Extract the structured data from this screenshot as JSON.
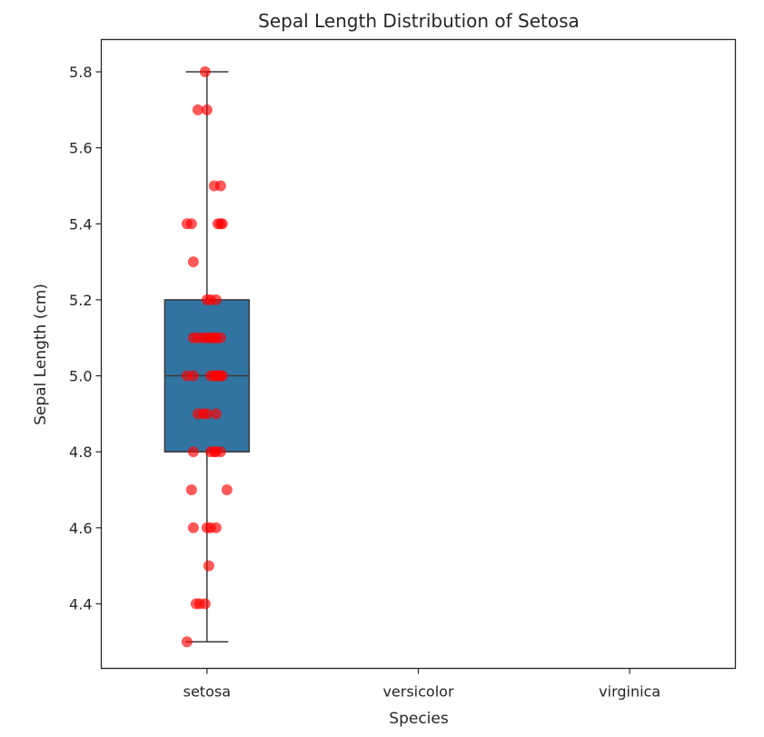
{
  "chart_data": {
    "type": "boxplot",
    "title": "Sepal Length Distribution of Setosa",
    "xlabel": "Species",
    "ylabel": "Sepal Length (cm)",
    "categories": [
      "setosa",
      "versicolor",
      "virginica"
    ],
    "ylim": [
      4.23,
      5.885
    ],
    "yticks": [
      4.4,
      4.6,
      4.8,
      5.0,
      5.2,
      5.4,
      5.6,
      5.8
    ],
    "ytick_labels": [
      "4.4",
      "4.6",
      "4.8",
      "5.0",
      "5.2",
      "5.4",
      "5.6",
      "5.8"
    ],
    "grid": false,
    "box": {
      "category": "setosa",
      "min": 4.3,
      "q1": 4.8,
      "median": 5.0,
      "q3": 5.2,
      "max": 5.8,
      "color": "#3274a1"
    },
    "points": {
      "category": "setosa",
      "color": "#ff0000",
      "opacity": 0.65,
      "values": [
        4.3,
        4.4,
        4.4,
        4.4,
        4.5,
        4.6,
        4.6,
        4.6,
        4.6,
        4.7,
        4.7,
        4.8,
        4.8,
        4.8,
        4.8,
        4.8,
        4.9,
        4.9,
        4.9,
        4.9,
        5.0,
        5.0,
        5.0,
        5.0,
        5.0,
        5.0,
        5.0,
        5.0,
        5.1,
        5.1,
        5.1,
        5.1,
        5.1,
        5.1,
        5.1,
        5.1,
        5.2,
        5.2,
        5.2,
        5.3,
        5.4,
        5.4,
        5.4,
        5.4,
        5.4,
        5.5,
        5.5,
        5.7,
        5.7,
        5.8
      ]
    }
  }
}
